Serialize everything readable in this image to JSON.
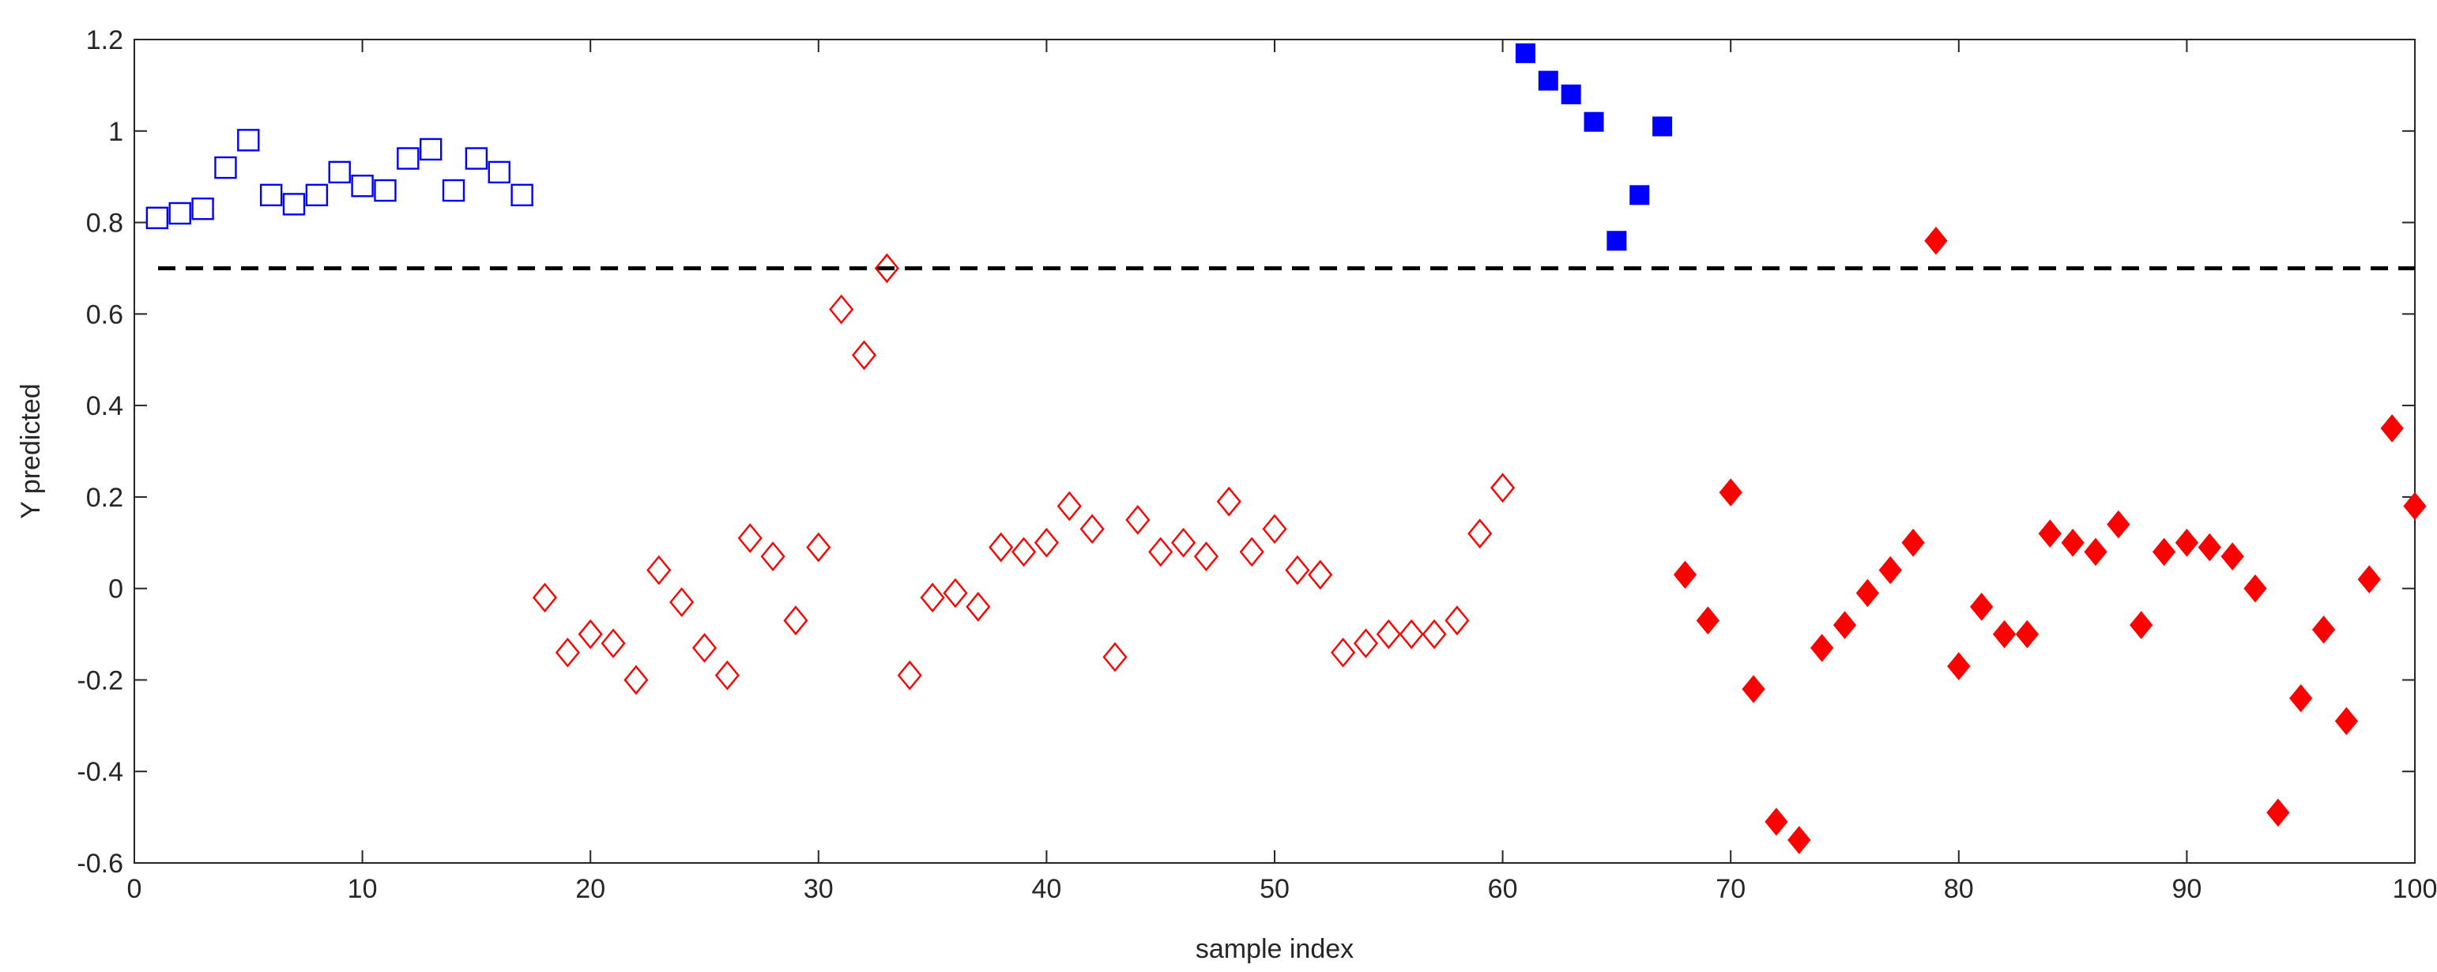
{
  "chart_data": {
    "type": "scatter",
    "title": "",
    "xlabel": "sample index",
    "ylabel": "Y predicted",
    "xlim": [
      0,
      100
    ],
    "ylim": [
      -0.6,
      1.2
    ],
    "xticks": [
      0,
      10,
      20,
      30,
      40,
      50,
      60,
      70,
      80,
      90,
      100
    ],
    "yticks": [
      -0.6,
      -0.4,
      -0.2,
      0,
      0.2,
      0.4,
      0.6,
      0.8,
      1,
      1.2
    ],
    "xtick_labels": [
      "0",
      "10",
      "20",
      "30",
      "40",
      "50",
      "60",
      "70",
      "80",
      "90",
      "100"
    ],
    "ytick_labels": [
      "-0.6",
      "-0.4",
      "-0.2",
      "0",
      "0.2",
      "0.4",
      "0.6",
      "0.8",
      "1",
      "1.2"
    ],
    "grid": false,
    "threshold": {
      "y": 0.7,
      "color": "#000000",
      "style": "dashed"
    },
    "series": [
      {
        "name": "blue open squares",
        "marker": "square",
        "filled": false,
        "color": "#0000ff",
        "x": [
          1,
          2,
          3,
          4,
          5,
          6,
          7,
          8,
          9,
          10,
          11,
          12,
          13,
          14,
          15,
          16,
          17
        ],
        "y": [
          0.81,
          0.82,
          0.83,
          0.92,
          0.98,
          0.86,
          0.84,
          0.86,
          0.91,
          0.88,
          0.87,
          0.94,
          0.96,
          0.87,
          0.94,
          0.91,
          0.86
        ]
      },
      {
        "name": "blue filled squares",
        "marker": "square",
        "filled": true,
        "color": "#0000ff",
        "x": [
          61,
          62,
          63,
          64,
          65,
          66,
          67
        ],
        "y": [
          1.17,
          1.11,
          1.08,
          1.02,
          0.76,
          0.86,
          1.01
        ]
      },
      {
        "name": "red open diamonds",
        "marker": "diamond",
        "filled": false,
        "color": "#ff0000",
        "x": [
          18,
          19,
          20,
          21,
          22,
          23,
          24,
          25,
          26,
          27,
          28,
          29,
          30,
          31,
          32,
          33,
          34,
          35,
          36,
          37,
          38,
          39,
          40,
          41,
          42,
          43,
          44,
          45,
          46,
          47,
          48,
          49,
          50,
          51,
          52,
          53,
          54,
          55,
          56,
          57,
          58,
          59,
          60
        ],
        "y": [
          -0.02,
          -0.14,
          -0.1,
          -0.12,
          -0.2,
          0.04,
          -0.03,
          -0.13,
          -0.19,
          0.11,
          0.07,
          -0.07,
          0.09,
          0.61,
          0.51,
          0.7,
          -0.19,
          -0.02,
          -0.01,
          -0.04,
          0.09,
          0.08,
          0.1,
          0.18,
          0.13,
          -0.15,
          0.15,
          0.08,
          0.1,
          0.07,
          0.19,
          0.08,
          0.13,
          0.04,
          0.03,
          -0.14,
          -0.12,
          -0.1,
          -0.1,
          -0.1,
          -0.07,
          0.12,
          0.22
        ]
      },
      {
        "name": "red filled diamonds",
        "marker": "diamond",
        "filled": true,
        "color": "#ff0000",
        "x": [
          68,
          69,
          70,
          71,
          72,
          73,
          74,
          75,
          76,
          77,
          78,
          79,
          80,
          81,
          82,
          83,
          84,
          85,
          86,
          87,
          88,
          89,
          90,
          91,
          92,
          93,
          94,
          95,
          96,
          97,
          98,
          99,
          100
        ],
        "y": [
          0.03,
          -0.07,
          0.21,
          -0.22,
          -0.51,
          -0.55,
          -0.13,
          -0.08,
          -0.01,
          0.04,
          0.1,
          0.76,
          -0.17,
          -0.04,
          -0.1,
          -0.1,
          0.12,
          0.1,
          0.08,
          0.14,
          -0.08,
          0.08,
          0.1,
          0.09,
          0.07,
          0.0,
          -0.49,
          -0.24,
          -0.09,
          -0.29,
          0.02,
          0.35,
          0.18
        ]
      }
    ]
  }
}
